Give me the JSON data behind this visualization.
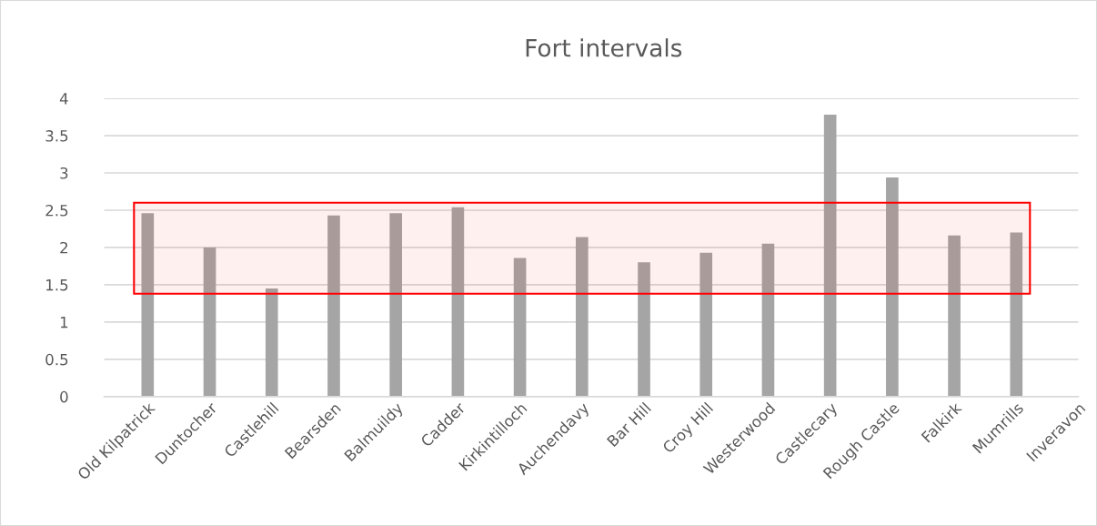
{
  "chart_data": {
    "type": "bar",
    "title": "Fort intervals",
    "categories": [
      "Old Kilpatrick",
      "Duntocher",
      "Castlehill",
      "Bearsden",
      "Balmuildy",
      "Cadder",
      "Kirkintilloch",
      "Auchendavy",
      "Bar Hill",
      "Croy Hill",
      "Westerwood",
      "Castlecary",
      "Rough Castle",
      "Falkirk",
      "Mumrills",
      "Inveravon"
    ],
    "values": [
      2.46,
      2.0,
      1.45,
      2.43,
      2.46,
      2.54,
      1.86,
      2.14,
      1.8,
      1.93,
      2.05,
      3.78,
      2.94,
      2.16,
      2.2,
      null
    ],
    "color": "#a5a5a5",
    "ylim": [
      0,
      4
    ],
    "yticks": [
      0,
      0.5,
      1,
      1.5,
      2,
      2.5,
      3,
      3.5,
      4
    ],
    "grid": "y",
    "bands": [
      {
        "axis": "y",
        "from": 1.38,
        "to": 2.6,
        "color": "#ff0000"
      }
    ]
  }
}
